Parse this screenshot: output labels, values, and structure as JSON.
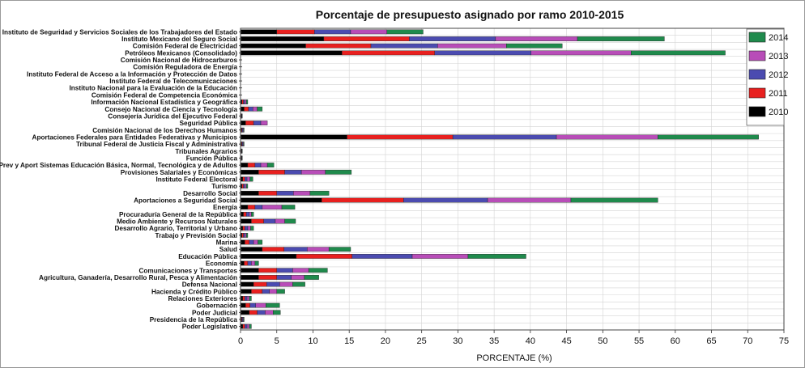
{
  "chart_data": {
    "type": "bar",
    "orientation": "horizontal",
    "stacked": true,
    "title": "Porcentaje de presupuesto asignado por ramo 2010-2015",
    "xlabel": "PORCENTAJE (%)",
    "ylabel": "",
    "xlim": [
      0,
      75
    ],
    "xticks": [
      "0",
      "5",
      "10",
      "15",
      "20",
      "25",
      "30",
      "35",
      "40",
      "45",
      "50",
      "55",
      "60",
      "65",
      "70",
      "75"
    ],
    "grid": true,
    "legend_position": "top-right",
    "categories": [
      "Instituto de Seguridad y Servicios Sociales de los Trabajadores del Estado",
      "Instituto Mexicano del Seguro Social",
      "Comisión Federal de Electricidad",
      "Petróleos Mexicanos (Consolidado)",
      "Comisión Nacional de Hidrocarburos",
      "Comisión Reguladora de Energía",
      "Instituto Federal de Acceso a la Información y Protección de Datos",
      "Instituto Federal de Telecomunicaciones",
      "Instituto Nacional para la Evaluación de la Educación",
      "Comisión Federal de Competencia Económica",
      "Información Nacional Estadística y Geográfica",
      "Consejo Nacional de Ciencia y Tecnología",
      "Consejería Jurídica del Ejecutivo Federal",
      "Seguridad Pública",
      "Comisión Nacional de los Derechos Humanos",
      "Aportaciones Federales para Entidades Federativas y Municipios",
      "Tribunal Federal de Justicia Fiscal y Administrativa",
      "Tribunales Agrarios",
      "Función Pública",
      "Prev y Aport Sistemas Educación Básica, Normal, Tecnológica y de Adultos",
      "Provisiones Salariales y Económicas",
      "Instituto Federal Electoral",
      "Turismo",
      "Desarrollo Social",
      "Aportaciones a Seguridad Social",
      "Energía",
      "Procuraduría General de la República",
      "Medio Ambiente y Recursos Naturales",
      "Desarrollo Agrario, Territorial y Urbano",
      "Trabajo y Previsión Social",
      "Marina",
      "Salud",
      "Educación Pública",
      "Economía",
      "Comunicaciones y Transportes",
      "Agricultura, Ganadería, Desarrollo Rural, Pesca y Alimentación",
      "Defensa Nacional",
      "Hacienda y Crédito Público",
      "Relaciones Exteriores",
      "Gobernación",
      "Poder Judicial",
      "Presidencia de la República",
      "Poder Legislativo"
    ],
    "series": [
      {
        "name": "2010",
        "color": "#000000",
        "values": [
          5.0,
          11.5,
          9.0,
          14.0,
          0,
          0,
          0,
          0,
          0,
          0,
          0.2,
          0.5,
          0.05,
          0.7,
          0.1,
          14.7,
          0.1,
          0.05,
          0.05,
          1.0,
          2.5,
          0.3,
          0.2,
          2.5,
          11.2,
          1.0,
          0.4,
          1.5,
          0.3,
          0.2,
          0.6,
          3.0,
          7.7,
          0.5,
          2.5,
          2.5,
          1.8,
          1.5,
          0.3,
          0.7,
          1.2,
          0.1,
          0.3
        ]
      },
      {
        "name": "2011",
        "color": "#e8201f",
        "values": [
          5.2,
          11.8,
          9.0,
          12.8,
          0,
          0,
          0,
          0,
          0,
          0,
          0.2,
          0.6,
          0.05,
          1.1,
          0.1,
          14.6,
          0.1,
          0.05,
          0.05,
          1.0,
          3.6,
          0.3,
          0.2,
          2.5,
          11.3,
          1.0,
          0.4,
          1.7,
          0.3,
          0.2,
          0.6,
          3.0,
          7.7,
          0.5,
          2.5,
          2.5,
          1.8,
          1.5,
          0.3,
          0.6,
          1.1,
          0.1,
          0.3
        ]
      },
      {
        "name": "2012",
        "color": "#4b4bb0",
        "values": [
          5.0,
          11.9,
          9.2,
          13.3,
          0,
          0,
          0,
          0,
          0,
          0,
          0.2,
          0.6,
          0.05,
          1.0,
          0.1,
          14.3,
          0.1,
          0.05,
          0.05,
          0.8,
          2.3,
          0.3,
          0.2,
          2.3,
          11.6,
          1.0,
          0.4,
          1.6,
          0.4,
          0.2,
          0.6,
          3.2,
          8.3,
          0.5,
          2.2,
          2.0,
          1.8,
          1.0,
          0.3,
          0.8,
          1.1,
          0.1,
          0.3
        ]
      },
      {
        "name": "2013",
        "color": "#b84db8",
        "values": [
          5.0,
          11.3,
          9.5,
          13.8,
          0,
          0,
          0,
          0,
          0,
          0,
          0.2,
          0.6,
          0.05,
          0.9,
          0.1,
          14.0,
          0.1,
          0.05,
          0.05,
          0.9,
          3.3,
          0.4,
          0.2,
          2.3,
          11.5,
          2.7,
          0.3,
          1.3,
          0.4,
          0.2,
          0.6,
          3.0,
          7.7,
          0.5,
          2.2,
          1.8,
          1.8,
          1.0,
          0.3,
          1.4,
          1.1,
          0.1,
          0.3
        ]
      },
      {
        "name": "2014",
        "color": "#1f8a4c",
        "values": [
          5.0,
          12.0,
          7.7,
          13.0,
          0,
          0,
          0,
          0,
          0,
          0,
          0.2,
          0.7,
          0.05,
          0,
          0.1,
          13.9,
          0.1,
          0.05,
          0.05,
          0.9,
          3.6,
          0.4,
          0.2,
          2.6,
          12.0,
          1.8,
          0.3,
          1.5,
          0.4,
          0.2,
          0.6,
          3.0,
          8.0,
          0.5,
          2.6,
          2.0,
          1.7,
          1.1,
          0.3,
          1.9,
          1.0,
          0.1,
          0.3
        ]
      }
    ]
  }
}
